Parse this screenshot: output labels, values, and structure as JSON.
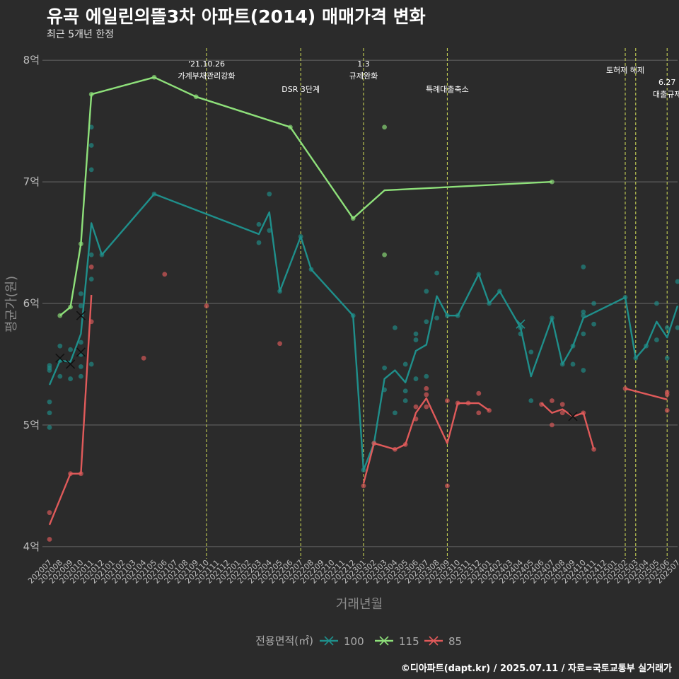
{
  "header": {
    "title": "유곡 에일린의뜰3차 아파트(2014) 매매가격 변화",
    "subtitle": "최근 5개년 한정"
  },
  "caption": "©디아파트(dapt.kr) / 2025.07.11 / 자료=국토교통부 실거래가",
  "colors": {
    "background": "#2b2b2b",
    "grid": "#5c5c5c",
    "event_line": "#d4e157",
    "s100": "#1f8f8b",
    "s115": "#8ee07a",
    "s85": "#e05a5a"
  },
  "chart_data": {
    "type": "line",
    "title": "유곡 에일린의뜰3차 아파트(2014) 매매가격 변화",
    "subtitle": "최근 5개년 한정",
    "xlabel": "거래년월",
    "ylabel": "평균가(원)",
    "ylim": [
      3.9,
      8.1
    ],
    "y_ticks": [
      4,
      5,
      6,
      7,
      8
    ],
    "y_tick_labels": [
      "4억",
      "5억",
      "6억",
      "7억",
      "8억"
    ],
    "grid": true,
    "legend": {
      "title": "전용면적(㎡)",
      "position": "bottom"
    },
    "categories": [
      "202007",
      "202008",
      "202009",
      "202010",
      "202011",
      "202012",
      "202101",
      "202102",
      "202103",
      "202104",
      "202105",
      "202106",
      "202107",
      "202108",
      "202109",
      "202110",
      "202111",
      "202112",
      "202201",
      "202202",
      "202203",
      "202204",
      "202205",
      "202206",
      "202207",
      "202208",
      "202209",
      "202210",
      "202211",
      "202212",
      "202301",
      "202302",
      "202303",
      "202304",
      "202305",
      "202306",
      "202307",
      "202308",
      "202309",
      "202310",
      "202311",
      "202312",
      "202401",
      "202402",
      "202403",
      "202404",
      "202405",
      "202406",
      "202407",
      "202408",
      "202409",
      "202410",
      "202411",
      "202412",
      "202501",
      "202502",
      "202503",
      "202504",
      "202505",
      "202506",
      "202507"
    ],
    "events": [
      {
        "x": "202110",
        "label": "'21.10.26\n가계부채관리강화"
      },
      {
        "x": "202207",
        "label": "DSR 3단계"
      },
      {
        "x": "202301",
        "label": "1.3\n규제완화"
      },
      {
        "x": "202309",
        "label": "특례대출축소"
      },
      {
        "x": "202502",
        "label": "토허제 해제"
      },
      {
        "x": "202503",
        "label": ""
      },
      {
        "x": "202506",
        "label": "6.27\n대출규제"
      }
    ],
    "series": [
      {
        "name": "100",
        "color": "#1f8f8b",
        "line": [
          [
            "202007",
            5.33
          ],
          [
            "202008",
            5.53
          ],
          [
            "202009",
            5.52
          ],
          [
            "202010",
            5.75
          ],
          [
            "202011",
            6.66
          ],
          [
            "202012",
            6.4
          ],
          [
            "202105",
            6.9
          ],
          [
            "202203",
            6.57
          ],
          [
            "202204",
            6.75
          ],
          [
            "202205",
            6.1
          ],
          [
            "202207",
            6.55
          ],
          [
            "202208",
            6.28
          ],
          [
            "202212",
            5.9
          ],
          [
            "202301",
            4.63
          ],
          [
            "202302",
            4.85
          ],
          [
            "202303",
            5.38
          ],
          [
            "202304",
            5.45
          ],
          [
            "202305",
            5.35
          ],
          [
            "202306",
            5.61
          ],
          [
            "202307",
            5.66
          ],
          [
            "202308",
            6.06
          ],
          [
            "202309",
            5.9
          ],
          [
            "202310",
            5.9
          ],
          [
            "202312",
            6.24
          ],
          [
            "202401",
            6.0
          ],
          [
            "202402",
            6.1
          ],
          [
            "202404",
            5.8
          ],
          [
            "202405",
            5.4
          ],
          [
            "202407",
            5.88
          ],
          [
            "202408",
            5.5
          ],
          [
            "202409",
            5.65
          ],
          [
            "202410",
            5.88
          ],
          [
            "202502",
            6.05
          ],
          [
            "202503",
            5.55
          ],
          [
            "202504",
            5.65
          ],
          [
            "202505",
            5.85
          ],
          [
            "202506",
            5.72
          ],
          [
            "202507",
            5.98
          ]
        ],
        "points": [
          [
            "202007",
            5.45
          ],
          [
            "202007",
            5.47
          ],
          [
            "202007",
            5.49
          ],
          [
            "202007",
            5.1
          ],
          [
            "202007",
            5.19
          ],
          [
            "202007",
            4.98
          ],
          [
            "202008",
            5.65
          ],
          [
            "202008",
            5.4
          ],
          [
            "202008",
            5.53
          ],
          [
            "202009",
            5.62
          ],
          [
            "202009",
            5.38
          ],
          [
            "202010",
            6.08
          ],
          [
            "202010",
            5.98
          ],
          [
            "202010",
            5.68
          ],
          [
            "202010",
            5.58
          ],
          [
            "202010",
            5.4
          ],
          [
            "202010",
            5.48
          ],
          [
            "202011",
            7.45
          ],
          [
            "202011",
            7.3
          ],
          [
            "202011",
            7.1
          ],
          [
            "202011",
            6.4
          ],
          [
            "202011",
            6.2
          ],
          [
            "202011",
            5.5
          ],
          [
            "202012",
            6.4
          ],
          [
            "202105",
            6.9
          ],
          [
            "202203",
            6.65
          ],
          [
            "202203",
            6.5
          ],
          [
            "202204",
            6.9
          ],
          [
            "202204",
            6.6
          ],
          [
            "202205",
            6.1
          ],
          [
            "202207",
            6.55
          ],
          [
            "202208",
            6.28
          ],
          [
            "202212",
            5.9
          ],
          [
            "202301",
            4.63
          ],
          [
            "202302",
            4.85
          ],
          [
            "202303",
            5.47
          ],
          [
            "202303",
            5.29
          ],
          [
            "202304",
            5.8
          ],
          [
            "202304",
            5.1
          ],
          [
            "202305",
            5.5
          ],
          [
            "202305",
            5.2
          ],
          [
            "202305",
            5.28
          ],
          [
            "202306",
            5.75
          ],
          [
            "202306",
            5.7
          ],
          [
            "202306",
            5.38
          ],
          [
            "202307",
            6.1
          ],
          [
            "202307",
            5.85
          ],
          [
            "202307",
            5.4
          ],
          [
            "202308",
            6.25
          ],
          [
            "202308",
            5.88
          ],
          [
            "202309",
            5.9
          ],
          [
            "202310",
            5.9
          ],
          [
            "202312",
            6.24
          ],
          [
            "202401",
            6.0
          ],
          [
            "202402",
            6.1
          ],
          [
            "202404",
            5.8
          ],
          [
            "202404",
            5.75
          ],
          [
            "202405",
            5.6
          ],
          [
            "202405",
            5.2
          ],
          [
            "202407",
            5.88
          ],
          [
            "202408",
            5.5
          ],
          [
            "202409",
            5.65
          ],
          [
            "202409",
            5.5
          ],
          [
            "202410",
            6.3
          ],
          [
            "202410",
            5.93
          ],
          [
            "202410",
            5.9
          ],
          [
            "202410",
            5.75
          ],
          [
            "202410",
            5.45
          ],
          [
            "202411",
            6.0
          ],
          [
            "202411",
            5.83
          ],
          [
            "202502",
            6.05
          ],
          [
            "202503",
            5.55
          ],
          [
            "202504",
            5.65
          ],
          [
            "202505",
            6.0
          ],
          [
            "202505",
            5.7
          ],
          [
            "202506",
            5.8
          ],
          [
            "202506",
            5.55
          ],
          [
            "202507",
            6.18
          ],
          [
            "202507",
            5.8
          ]
        ],
        "crosses": [
          [
            "202008",
            5.55
          ],
          [
            "202009",
            5.5
          ],
          [
            "202010",
            5.6
          ],
          [
            "202010",
            5.9
          ],
          [
            "202404",
            5.83
          ]
        ]
      },
      {
        "name": "115",
        "color": "#8ee07a",
        "line": [
          [
            "202008",
            5.9
          ],
          [
            "202009",
            5.97
          ],
          [
            "202010",
            6.49
          ],
          [
            "202011",
            7.72
          ],
          [
            "202105",
            7.86
          ],
          [
            "202109",
            7.7
          ],
          [
            "202206",
            7.45
          ],
          [
            "202212",
            6.7
          ],
          [
            "202303",
            6.93
          ],
          [
            "202407",
            7.0
          ]
        ],
        "points": [
          [
            "202008",
            5.9
          ],
          [
            "202009",
            5.97
          ],
          [
            "202010",
            6.49
          ],
          [
            "202011",
            7.72
          ],
          [
            "202105",
            7.86
          ],
          [
            "202109",
            7.7
          ],
          [
            "202206",
            7.45
          ],
          [
            "202212",
            6.7
          ],
          [
            "202303",
            7.45
          ],
          [
            "202303",
            6.4
          ],
          [
            "202407",
            7.0
          ]
        ],
        "crosses": []
      },
      {
        "name": "85",
        "color": "#e05a5a",
        "line": [
          [
            "202007",
            4.18
          ],
          [
            "202009",
            4.6
          ],
          [
            "202010",
            4.6
          ],
          [
            "202011",
            6.07
          ]
        ],
        "line2": [
          [
            "202301",
            4.52
          ],
          [
            "202302",
            4.85
          ],
          [
            "202304",
            4.8
          ],
          [
            "202305",
            4.84
          ],
          [
            "202306",
            5.1
          ],
          [
            "202307",
            5.22
          ],
          [
            "202309",
            4.85
          ],
          [
            "202310",
            5.18
          ],
          [
            "202311",
            5.18
          ],
          [
            "202312",
            5.18
          ],
          [
            "202401",
            5.12
          ]
        ],
        "line3": [
          [
            "202406",
            5.18
          ],
          [
            "202407",
            5.1
          ],
          [
            "202408",
            5.13
          ],
          [
            "202409",
            5.07
          ],
          [
            "202410",
            5.1
          ],
          [
            "202411",
            4.8
          ]
        ],
        "line4": [
          [
            "202502",
            5.3
          ],
          [
            "202506",
            5.21
          ]
        ],
        "points": [
          [
            "202007",
            4.28
          ],
          [
            "202007",
            4.06
          ],
          [
            "202009",
            4.6
          ],
          [
            "202010",
            4.6
          ],
          [
            "202011",
            6.3
          ],
          [
            "202011",
            5.85
          ],
          [
            "202104",
            5.55
          ],
          [
            "202106",
            6.24
          ],
          [
            "202110",
            5.98
          ],
          [
            "202205",
            5.67
          ],
          [
            "202301",
            4.5
          ],
          [
            "202302",
            4.85
          ],
          [
            "202304",
            4.8
          ],
          [
            "202305",
            4.84
          ],
          [
            "202306",
            5.15
          ],
          [
            "202306",
            5.05
          ],
          [
            "202307",
            5.3
          ],
          [
            "202307",
            5.25
          ],
          [
            "202307",
            5.15
          ],
          [
            "202309",
            5.2
          ],
          [
            "202309",
            4.5
          ],
          [
            "202310",
            5.18
          ],
          [
            "202311",
            5.18
          ],
          [
            "202312",
            5.26
          ],
          [
            "202312",
            5.1
          ],
          [
            "202401",
            5.12
          ],
          [
            "202406",
            5.17
          ],
          [
            "202407",
            5.2
          ],
          [
            "202407",
            5.0
          ],
          [
            "202408",
            5.17
          ],
          [
            "202408",
            5.1
          ],
          [
            "202410",
            5.1
          ],
          [
            "202411",
            4.8
          ],
          [
            "202502",
            5.3
          ],
          [
            "202506",
            5.27
          ],
          [
            "202506",
            5.25
          ],
          [
            "202506",
            5.12
          ]
        ],
        "crosses": [
          [
            "202409",
            5.07
          ]
        ]
      }
    ]
  }
}
